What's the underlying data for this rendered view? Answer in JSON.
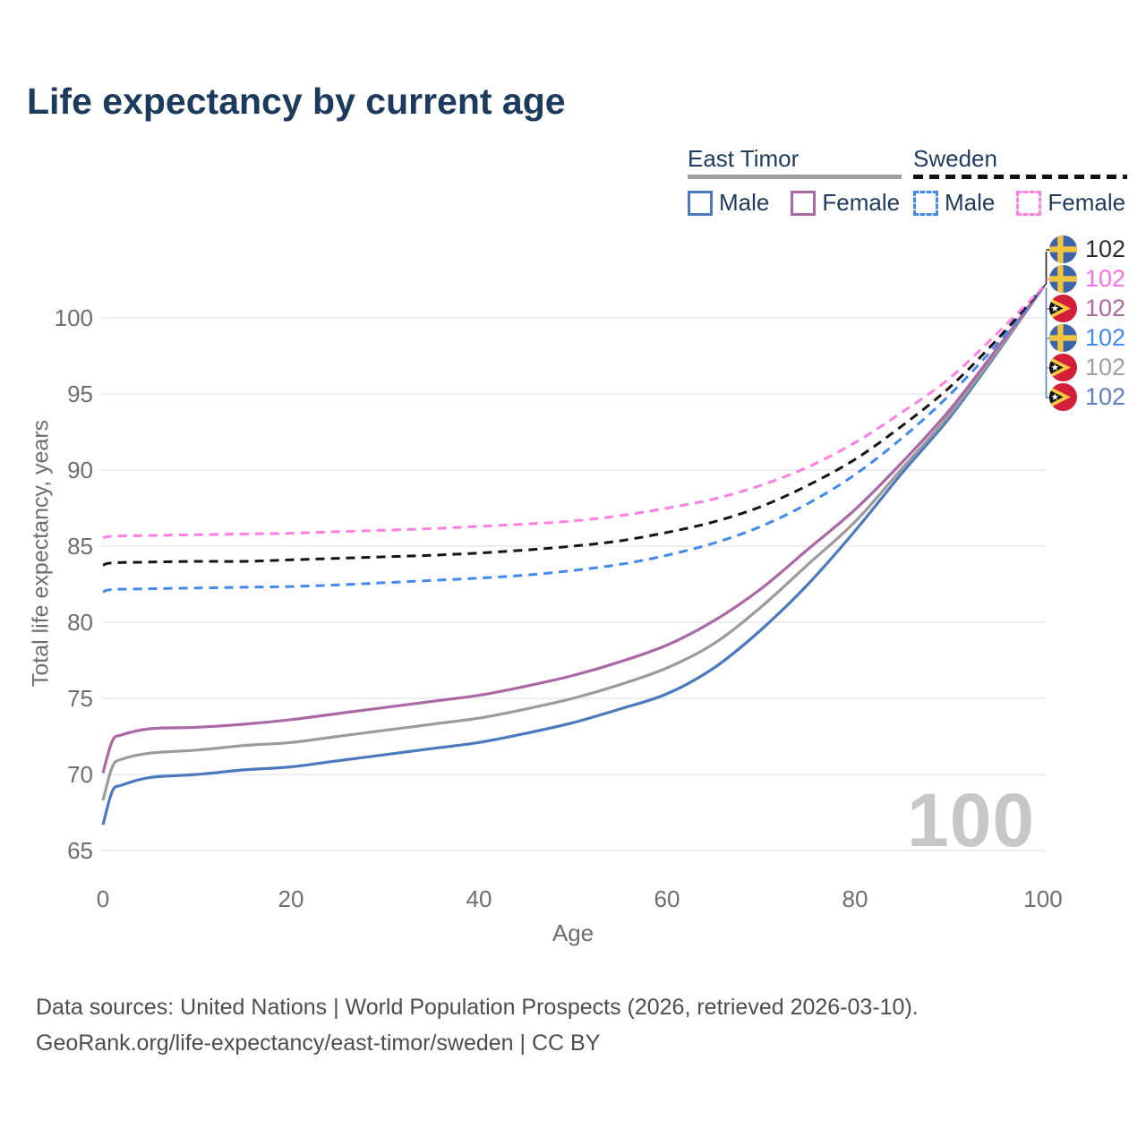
{
  "header": {
    "title": "Life expectancy by current age"
  },
  "legend": {
    "groups": [
      {
        "title": "East Timor",
        "underline_style": "solid",
        "underline_color": "#9e9e9e",
        "items": [
          {
            "label": "Male",
            "color": "#4a79c0",
            "dash": false
          },
          {
            "label": "Female",
            "color": "#aa68a4",
            "dash": false
          }
        ]
      },
      {
        "title": "Sweden",
        "underline_style": "dashed",
        "underline_color": "#111111",
        "items": [
          {
            "label": "Male",
            "color": "#4189ec",
            "dash": true
          },
          {
            "label": "Female",
            "color": "#ff7ee2",
            "dash": true
          }
        ]
      }
    ]
  },
  "chart_data": {
    "type": "line",
    "title": "Life expectancy by current age",
    "xlabel": "Age",
    "ylabel": "Total life expectancy, years",
    "xlim": [
      0,
      100
    ],
    "ylim": [
      63.5,
      103
    ],
    "x_ticks": [
      0,
      20,
      40,
      60,
      80,
      100
    ],
    "y_ticks": [
      65,
      70,
      75,
      80,
      85,
      90,
      95,
      100
    ],
    "grid": "horizontal",
    "legend_position": "top-right",
    "series": [
      {
        "id": "east-timor-male",
        "name": "East Timor Male",
        "color": "#4a79c0",
        "dash": false,
        "width": 3.2,
        "points": [
          [
            0,
            66.7
          ],
          [
            1,
            68.9
          ],
          [
            2,
            69.3
          ],
          [
            5,
            69.8
          ],
          [
            10,
            70.0
          ],
          [
            15,
            70.3
          ],
          [
            20,
            70.5
          ],
          [
            25,
            70.9
          ],
          [
            30,
            71.3
          ],
          [
            35,
            71.7
          ],
          [
            40,
            72.1
          ],
          [
            45,
            72.7
          ],
          [
            50,
            73.4
          ],
          [
            55,
            74.3
          ],
          [
            60,
            75.3
          ],
          [
            65,
            77.0
          ],
          [
            70,
            79.5
          ],
          [
            75,
            82.5
          ],
          [
            80,
            86.0
          ],
          [
            85,
            89.8
          ],
          [
            90,
            93.4
          ],
          [
            95,
            97.6
          ],
          [
            100,
            102
          ]
        ]
      },
      {
        "id": "east-timor-both",
        "name": "East Timor",
        "color": "#9b9b9b",
        "dash": false,
        "width": 3.2,
        "points": [
          [
            0,
            68.3
          ],
          [
            1,
            70.5
          ],
          [
            2,
            71.0
          ],
          [
            5,
            71.4
          ],
          [
            10,
            71.6
          ],
          [
            15,
            71.9
          ],
          [
            20,
            72.1
          ],
          [
            25,
            72.5
          ],
          [
            30,
            72.9
          ],
          [
            35,
            73.3
          ],
          [
            40,
            73.7
          ],
          [
            45,
            74.3
          ],
          [
            50,
            75.0
          ],
          [
            55,
            75.9
          ],
          [
            60,
            77.0
          ],
          [
            65,
            78.6
          ],
          [
            70,
            81.0
          ],
          [
            75,
            83.8
          ],
          [
            80,
            86.6
          ],
          [
            85,
            90.1
          ],
          [
            90,
            93.6
          ],
          [
            95,
            97.7
          ],
          [
            100,
            102
          ]
        ]
      },
      {
        "id": "east-timor-female",
        "name": "East Timor Female",
        "color": "#aa68a4",
        "dash": false,
        "width": 3.2,
        "points": [
          [
            0,
            70.1
          ],
          [
            1,
            72.2
          ],
          [
            2,
            72.6
          ],
          [
            5,
            73.0
          ],
          [
            10,
            73.1
          ],
          [
            15,
            73.3
          ],
          [
            20,
            73.6
          ],
          [
            25,
            74.0
          ],
          [
            30,
            74.4
          ],
          [
            35,
            74.8
          ],
          [
            40,
            75.2
          ],
          [
            45,
            75.8
          ],
          [
            50,
            76.5
          ],
          [
            55,
            77.4
          ],
          [
            60,
            78.5
          ],
          [
            65,
            80.1
          ],
          [
            70,
            82.2
          ],
          [
            75,
            84.8
          ],
          [
            80,
            87.4
          ],
          [
            85,
            90.5
          ],
          [
            90,
            93.9
          ],
          [
            95,
            97.9
          ],
          [
            100,
            102
          ]
        ]
      },
      {
        "id": "sweden-male",
        "name": "Sweden Male",
        "color": "#4189ec",
        "dash": true,
        "width": 3,
        "points": [
          [
            0,
            82.0
          ],
          [
            1,
            82.15
          ],
          [
            5,
            82.2
          ],
          [
            10,
            82.25
          ],
          [
            15,
            82.3
          ],
          [
            20,
            82.35
          ],
          [
            25,
            82.45
          ],
          [
            30,
            82.6
          ],
          [
            35,
            82.75
          ],
          [
            40,
            82.9
          ],
          [
            45,
            83.1
          ],
          [
            50,
            83.4
          ],
          [
            55,
            83.8
          ],
          [
            60,
            84.4
          ],
          [
            65,
            85.2
          ],
          [
            70,
            86.3
          ],
          [
            75,
            87.8
          ],
          [
            80,
            89.7
          ],
          [
            85,
            92.1
          ],
          [
            90,
            94.9
          ],
          [
            95,
            98.2
          ],
          [
            100,
            102
          ]
        ]
      },
      {
        "id": "sweden-both",
        "name": "Sweden",
        "color": "#141414",
        "dash": true,
        "width": 3,
        "points": [
          [
            0,
            83.75
          ],
          [
            1,
            83.9
          ],
          [
            5,
            83.95
          ],
          [
            10,
            84.0
          ],
          [
            15,
            84.0
          ],
          [
            20,
            84.1
          ],
          [
            25,
            84.2
          ],
          [
            30,
            84.3
          ],
          [
            35,
            84.4
          ],
          [
            40,
            84.55
          ],
          [
            45,
            84.75
          ],
          [
            50,
            85.0
          ],
          [
            55,
            85.35
          ],
          [
            60,
            85.9
          ],
          [
            65,
            86.6
          ],
          [
            70,
            87.6
          ],
          [
            75,
            89.0
          ],
          [
            80,
            90.7
          ],
          [
            85,
            92.9
          ],
          [
            90,
            95.4
          ],
          [
            95,
            98.5
          ],
          [
            100,
            102
          ]
        ]
      },
      {
        "id": "sweden-female",
        "name": "Sweden Female",
        "color": "#ff7ee2",
        "dash": true,
        "width": 3,
        "points": [
          [
            0,
            85.55
          ],
          [
            1,
            85.65
          ],
          [
            5,
            85.7
          ],
          [
            10,
            85.75
          ],
          [
            15,
            85.8
          ],
          [
            20,
            85.85
          ],
          [
            25,
            85.95
          ],
          [
            30,
            86.05
          ],
          [
            35,
            86.15
          ],
          [
            40,
            86.3
          ],
          [
            45,
            86.45
          ],
          [
            50,
            86.65
          ],
          [
            55,
            87.0
          ],
          [
            60,
            87.5
          ],
          [
            65,
            88.1
          ],
          [
            70,
            89.0
          ],
          [
            75,
            90.2
          ],
          [
            80,
            91.8
          ],
          [
            85,
            93.8
          ],
          [
            90,
            96.0
          ],
          [
            95,
            98.9
          ],
          [
            100,
            102
          ]
        ]
      }
    ]
  },
  "right_labels": {
    "items": [
      {
        "flag": "sweden",
        "value": "102",
        "color": "#2e2e2e"
      },
      {
        "flag": "sweden",
        "value": "102",
        "color": "#ff6fe0"
      },
      {
        "flag": "east-timor",
        "value": "102",
        "color": "#aa68a4"
      },
      {
        "flag": "sweden",
        "value": "102",
        "color": "#4189ec"
      },
      {
        "flag": "east-timor",
        "value": "102",
        "color": "#a0a0a0"
      },
      {
        "flag": "east-timor",
        "value": "102",
        "color": "#5c80ba"
      }
    ]
  },
  "watermark": {
    "text": "100"
  },
  "axes": {
    "xlabel": "Age",
    "ylabel": "Total life expectancy, years"
  },
  "footer": {
    "line1": "Data sources: United Nations | World Population Prospects (2026, retrieved 2026-03-10).",
    "line2": "GeoRank.org/life-expectancy/east-timor/sweden | CC BY"
  },
  "colors": {
    "title": "#1c3a5c",
    "tick_text": "#6e6e6e",
    "gridline": "#e8e8e8",
    "footer_text": "#4d4d4d",
    "watermark": "#c7c7c7"
  }
}
